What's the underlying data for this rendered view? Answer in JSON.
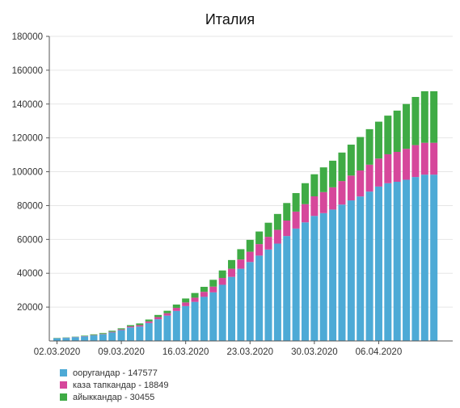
{
  "chart_data": {
    "type": "bar",
    "stacked": true,
    "title": "Италия",
    "xlabel": "",
    "ylabel": "",
    "ylim": [
      0,
      180000
    ],
    "yticks": [
      20000,
      40000,
      60000,
      80000,
      100000,
      120000,
      140000,
      160000,
      180000
    ],
    "xtick_labels": [
      "02.03.2020",
      "09.03.2020",
      "16.03.2020",
      "23.03.2020",
      "30.03.2020",
      "06.04.2020"
    ],
    "xtick_index": [
      0,
      7,
      14,
      21,
      28,
      35
    ],
    "grid": true,
    "legend_position": "bottom-left",
    "categories": [
      "2020-03-02",
      "2020-03-03",
      "2020-03-04",
      "2020-03-05",
      "2020-03-06",
      "2020-03-07",
      "2020-03-08",
      "2020-03-09",
      "2020-03-10",
      "2020-03-11",
      "2020-03-12",
      "2020-03-13",
      "2020-03-14",
      "2020-03-15",
      "2020-03-16",
      "2020-03-17",
      "2020-03-18",
      "2020-03-19",
      "2020-03-20",
      "2020-03-21",
      "2020-03-22",
      "2020-03-23",
      "2020-03-24",
      "2020-03-25",
      "2020-03-26",
      "2020-03-27",
      "2020-03-28",
      "2020-03-29",
      "2020-03-30",
      "2020-03-31",
      "2020-04-01",
      "2020-04-02",
      "2020-04-03",
      "2020-04-04",
      "2020-04-05",
      "2020-04-06",
      "2020-04-07",
      "2020-04-08",
      "2020-04-09",
      "2020-04-10",
      "2020-04-11",
      "2020-04-12"
    ],
    "series": [
      {
        "name": "ооругандар - 147577",
        "color": "#4daad6",
        "values": [
          1577,
          1835,
          2263,
          2706,
          3296,
          3916,
          5061,
          6387,
          7985,
          8514,
          10590,
          12839,
          14955,
          17750,
          20603,
          23073,
          26062,
          28710,
          33190,
          37860,
          42681,
          46638,
          50418,
          54030,
          57521,
          62013,
          66414,
          70065,
          73880,
          75528,
          77635,
          80572,
          83049,
          85388,
          88274,
          91246,
          93187,
          94067,
          95262,
          96877,
          98273,
          98273
        ]
      },
      {
        "name": "каза тапкандар - 18849",
        "color": "#d6479b",
        "values": [
          52,
          79,
          107,
          148,
          197,
          233,
          366,
          463,
          631,
          827,
          1016,
          1266,
          1441,
          1809,
          2158,
          2503,
          2978,
          3405,
          4032,
          4825,
          5476,
          6077,
          6820,
          7503,
          8165,
          9134,
          10023,
          10779,
          11591,
          12428,
          13155,
          13915,
          14681,
          15362,
          15887,
          16523,
          17127,
          17669,
          18279,
          18849,
          18849,
          18849
        ]
      },
      {
        "name": "айыккандар - 30455",
        "color": "#3fab45",
        "values": [
          160,
          149,
          160,
          276,
          414,
          523,
          589,
          622,
          724,
          1004,
          1045,
          1258,
          1439,
          1966,
          2335,
          2749,
          2941,
          4025,
          4440,
          5129,
          6072,
          7024,
          7432,
          8326,
          9362,
          10361,
          10950,
          12384,
          13030,
          14620,
          15729,
          16847,
          18278,
          19758,
          20996,
          21815,
          22837,
          24392,
          26491,
          28470,
          30455,
          30455
        ]
      }
    ]
  }
}
